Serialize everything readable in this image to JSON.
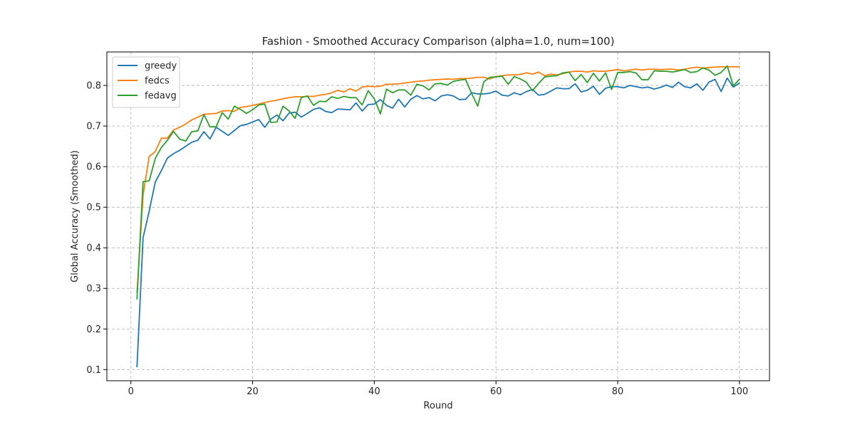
{
  "chart_data": {
    "type": "line",
    "title": "Fashion - Smoothed Accuracy Comparison (alpha=1.0, num=100)",
    "xlabel": "Round",
    "ylabel": "Global Accuracy (Smoothed)",
    "xlim": [
      -3.95,
      104.95
    ],
    "ylim": [
      0.0725,
      0.8825
    ],
    "xticks": [
      0,
      20,
      40,
      60,
      80,
      100
    ],
    "yticks": [
      0.1,
      0.2,
      0.3,
      0.4,
      0.5,
      0.6,
      0.7,
      0.8
    ],
    "ytick_labels": [
      "0.1",
      "0.2",
      "0.3",
      "0.4",
      "0.5",
      "0.6",
      "0.7",
      "0.8"
    ],
    "grid": true,
    "legend_position": "top-left",
    "x": [
      1,
      2,
      3,
      4,
      5,
      6,
      7,
      8,
      9,
      10,
      11,
      12,
      13,
      14,
      15,
      16,
      17,
      18,
      19,
      20,
      21,
      22,
      23,
      24,
      25,
      26,
      27,
      28,
      29,
      30,
      31,
      32,
      33,
      34,
      35,
      36,
      37,
      38,
      39,
      40,
      41,
      42,
      43,
      44,
      45,
      46,
      47,
      48,
      49,
      50,
      51,
      52,
      53,
      54,
      55,
      56,
      57,
      58,
      59,
      60,
      61,
      62,
      63,
      64,
      65,
      66,
      67,
      68,
      69,
      70,
      71,
      72,
      73,
      74,
      75,
      76,
      77,
      78,
      79,
      80,
      81,
      82,
      83,
      84,
      85,
      86,
      87,
      88,
      89,
      90,
      91,
      92,
      93,
      94,
      95,
      96,
      97,
      98,
      99,
      100
    ],
    "series": [
      {
        "name": "greedy",
        "color": "#1f77b4",
        "values": [
          0.107,
          0.425,
          0.49,
          0.562,
          0.59,
          0.621,
          0.632,
          0.64,
          0.65,
          0.66,
          0.665,
          0.686,
          0.668,
          0.697,
          0.687,
          0.677,
          0.689,
          0.701,
          0.704,
          0.71,
          0.716,
          0.697,
          0.717,
          0.727,
          0.713,
          0.732,
          0.734,
          0.722,
          0.731,
          0.741,
          0.745,
          0.736,
          0.733,
          0.742,
          0.741,
          0.74,
          0.757,
          0.737,
          0.753,
          0.754,
          0.765,
          0.751,
          0.744,
          0.766,
          0.747,
          0.766,
          0.775,
          0.767,
          0.77,
          0.762,
          0.774,
          0.777,
          0.774,
          0.765,
          0.766,
          0.782,
          0.779,
          0.779,
          0.781,
          0.786,
          0.776,
          0.774,
          0.782,
          0.777,
          0.785,
          0.79,
          0.776,
          0.778,
          0.786,
          0.794,
          0.792,
          0.792,
          0.804,
          0.784,
          0.788,
          0.798,
          0.778,
          0.793,
          0.797,
          0.797,
          0.794,
          0.8,
          0.797,
          0.794,
          0.796,
          0.791,
          0.795,
          0.801,
          0.795,
          0.808,
          0.797,
          0.794,
          0.804,
          0.788,
          0.808,
          0.815,
          0.785,
          0.818,
          0.796,
          0.806
        ]
      },
      {
        "name": "fedcs",
        "color": "#ff7f0e",
        "values": [
          0.29,
          0.53,
          0.625,
          0.637,
          0.67,
          0.67,
          0.69,
          0.697,
          0.705,
          0.715,
          0.722,
          0.729,
          0.73,
          0.731,
          0.737,
          0.738,
          0.736,
          0.746,
          0.748,
          0.751,
          0.754,
          0.758,
          0.761,
          0.764,
          0.767,
          0.77,
          0.772,
          0.772,
          0.773,
          0.773,
          0.776,
          0.778,
          0.782,
          0.788,
          0.784,
          0.792,
          0.786,
          0.796,
          0.798,
          0.797,
          0.798,
          0.803,
          0.803,
          0.804,
          0.806,
          0.808,
          0.81,
          0.811,
          0.813,
          0.814,
          0.815,
          0.816,
          0.815,
          0.817,
          0.817,
          0.818,
          0.82,
          0.82,
          0.816,
          0.822,
          0.824,
          0.826,
          0.826,
          0.827,
          0.831,
          0.828,
          0.833,
          0.824,
          0.828,
          0.826,
          0.829,
          0.833,
          0.835,
          0.835,
          0.833,
          0.836,
          0.835,
          0.835,
          0.837,
          0.839,
          0.836,
          0.838,
          0.84,
          0.838,
          0.84,
          0.84,
          0.839,
          0.84,
          0.84,
          0.838,
          0.84,
          0.843,
          0.845,
          0.843,
          0.844,
          0.845,
          0.846,
          0.846,
          0.846,
          0.846
        ]
      },
      {
        "name": "fedavg",
        "color": "#2ca02c",
        "values": [
          0.274,
          0.563,
          0.565,
          0.62,
          0.647,
          0.665,
          0.687,
          0.668,
          0.663,
          0.686,
          0.688,
          0.728,
          0.698,
          0.698,
          0.733,
          0.717,
          0.749,
          0.741,
          0.731,
          0.74,
          0.752,
          0.754,
          0.709,
          0.71,
          0.749,
          0.737,
          0.719,
          0.77,
          0.774,
          0.751,
          0.761,
          0.76,
          0.772,
          0.768,
          0.773,
          0.77,
          0.77,
          0.752,
          0.787,
          0.767,
          0.73,
          0.791,
          0.782,
          0.789,
          0.789,
          0.776,
          0.803,
          0.799,
          0.789,
          0.804,
          0.805,
          0.801,
          0.81,
          0.813,
          0.815,
          0.78,
          0.749,
          0.809,
          0.82,
          0.821,
          0.823,
          0.803,
          0.822,
          0.816,
          0.808,
          0.787,
          0.805,
          0.821,
          0.823,
          0.824,
          0.831,
          0.833,
          0.812,
          0.827,
          0.807,
          0.83,
          0.811,
          0.831,
          0.79,
          0.832,
          0.832,
          0.834,
          0.831,
          0.814,
          0.814,
          0.836,
          0.835,
          0.835,
          0.833,
          0.836,
          0.839,
          0.832,
          0.834,
          0.843,
          0.838,
          0.825,
          0.832,
          0.848,
          0.799,
          0.815
        ]
      }
    ]
  }
}
